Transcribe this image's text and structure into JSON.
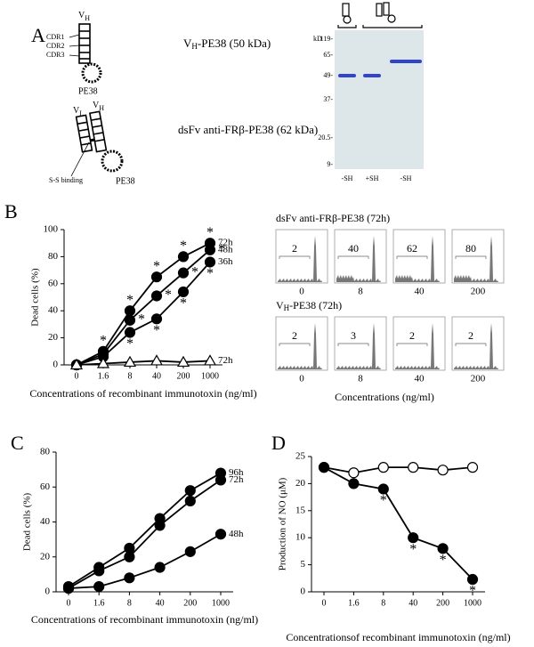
{
  "panel_labels": [
    "A",
    "B",
    "C",
    "D"
  ],
  "constructs": {
    "vh": {
      "v": "V",
      "h": "H",
      "cdrs": [
        "CDR1",
        "CDR2",
        "CDR3"
      ],
      "pe": "PE38",
      "name_v": "V",
      "name_h": "H",
      "name_rest": "-PE38 (50 kDa)"
    },
    "dsfv": {
      "vl_v": "V",
      "vl_l": "L",
      "vh_v": "V",
      "vh_h": "H",
      "ss": "S-S binding",
      "pe": "PE38",
      "name": "dsFv anti-FRβ-PE38 (62 kDa)"
    }
  },
  "gel": {
    "unit": "kD",
    "markers": [
      "119-",
      "65-",
      "49-",
      "37-",
      "20.5-",
      "9-"
    ],
    "lanes": [
      "-SH",
      "+SH",
      "-SH"
    ]
  },
  "flow": {
    "rows": [
      {
        "title_parts": [
          "dsFv anti-FRβ-PE38 (72h)"
        ],
        "percents": [
          "2",
          "40",
          "62",
          "80"
        ]
      },
      {
        "title_parts": [
          "V",
          "H",
          "-PE38 (72h)"
        ],
        "percents": [
          "2",
          "3",
          "2",
          "2"
        ]
      }
    ],
    "xlabels": [
      "0",
      "8",
      "40",
      "200"
    ],
    "xlabel": "Concentrations (ng/ml)"
  },
  "chart_data": [
    {
      "type": "line",
      "xlabel": "Concentrations of recombinant immunotoxin (ng/ml)",
      "ylabel": "Dead cells (%)",
      "categories": [
        "0",
        "1.6",
        "8",
        "40",
        "200",
        "1000"
      ],
      "ylim": [
        0,
        100
      ],
      "yticks": [
        0,
        20,
        40,
        60,
        80,
        100
      ],
      "series": [
        {
          "name": "72h",
          "color": "#000000",
          "marker": "filled-circle",
          "values": [
            0,
            10,
            40,
            65,
            80,
            90
          ],
          "point_labels": [
            null,
            "*",
            "*",
            "*",
            "*",
            "*"
          ],
          "point_label_side": "above"
        },
        {
          "name": "48h",
          "color": "#000000",
          "marker": "filled-circle",
          "values": [
            0,
            8,
            33,
            51,
            68,
            85
          ],
          "point_labels": [
            null,
            null,
            "*",
            "*",
            "*",
            "*"
          ],
          "point_label_side": "right"
        },
        {
          "name": "36h",
          "color": "#000000",
          "marker": "filled-circle",
          "values": [
            0,
            6,
            24,
            34,
            54,
            76
          ],
          "point_labels": [
            null,
            null,
            "*",
            "*",
            "*",
            "*"
          ],
          "point_label_side": "below"
        },
        {
          "name": "72h",
          "color": "#000000",
          "marker": "open-triangle",
          "values": [
            0,
            1,
            2,
            3,
            2,
            3
          ]
        }
      ]
    },
    {
      "type": "line",
      "xlabel": "Concentrations of recombinant immunotoxin (ng/ml)",
      "ylabel": "Dead cells (%)",
      "categories": [
        "0",
        "1.6",
        "8",
        "40",
        "200",
        "1000"
      ],
      "ylim": [
        0,
        80
      ],
      "yticks": [
        0,
        20,
        40,
        60,
        80
      ],
      "series": [
        {
          "name": "96h",
          "color": "#000000",
          "marker": "filled-circle",
          "values": [
            3,
            14,
            25,
            42,
            58,
            68
          ]
        },
        {
          "name": "72h",
          "color": "#000000",
          "marker": "filled-circle",
          "values": [
            2,
            12,
            20,
            38,
            52,
            64
          ]
        },
        {
          "name": "48h",
          "color": "#000000",
          "marker": "filled-circle",
          "values": [
            2,
            3,
            8,
            14,
            23,
            33
          ]
        }
      ]
    },
    {
      "type": "line",
      "xlabel": "Concentrationsof recombinant immunotoxin (ng/ml)",
      "ylabel": "Production of NO (μM)",
      "categories": [
        "0",
        "1.6",
        "8",
        "40",
        "200",
        "1000"
      ],
      "ylim": [
        0,
        25
      ],
      "yticks": [
        0,
        5,
        10,
        15,
        20,
        25
      ],
      "series": [
        {
          "color": "#000000",
          "marker": "open-circle",
          "values": [
            23,
            22,
            23,
            23,
            22.5,
            23
          ]
        },
        {
          "color": "#000000",
          "marker": "filled-circle",
          "values": [
            23,
            20,
            19,
            10,
            8,
            2.3
          ],
          "point_labels": [
            null,
            null,
            "*",
            "*",
            "*",
            "*"
          ],
          "point_label_side": "below"
        }
      ]
    }
  ]
}
